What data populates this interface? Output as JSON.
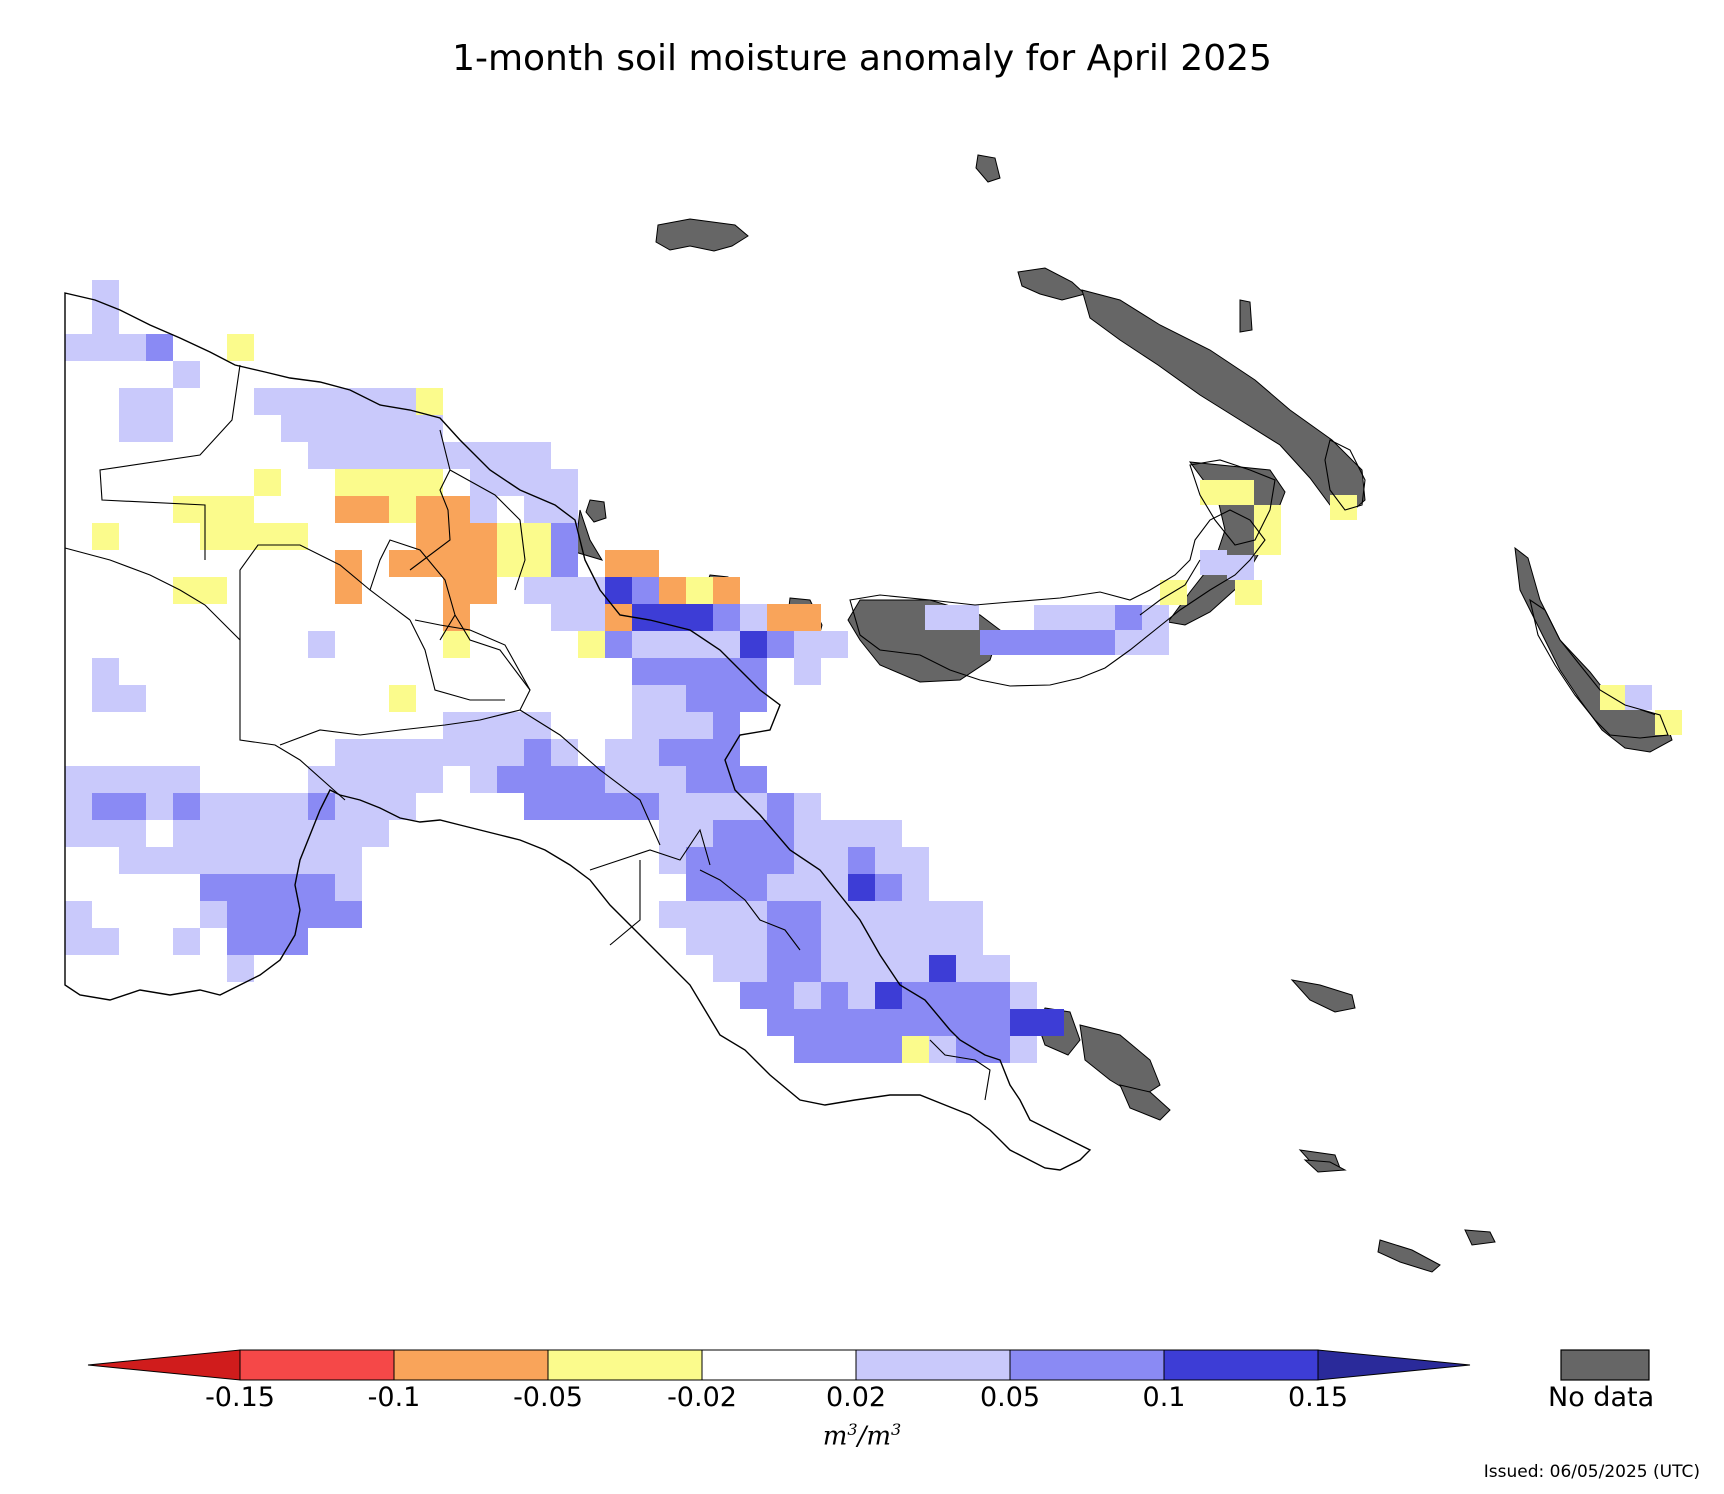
{
  "title": "1-month soil moisture anomaly for April 2025",
  "legend": {
    "ticks": [
      "-0.15",
      "-0.1",
      "-0.05",
      "-0.02",
      "0.02",
      "0.05",
      "0.1",
      "0.15"
    ],
    "colors": [
      "#d01c1c",
      "#f54848",
      "#f9a45a",
      "#fbfb8c",
      "#ffffff",
      "#c9c9fb",
      "#8a8af4",
      "#3d3dd6",
      "#2a2a9a"
    ],
    "units_base": "m",
    "units_exp": "3",
    "units_slash": "/",
    "nodata_label": "No data",
    "nodata_color": "#666666"
  },
  "issued": "Issued: 06/05/2025 (UTC)",
  "map_colors": {
    "outline": "#000000",
    "land": "#ffffff",
    "nodata": "#666666",
    "class_-3": "#f9a45a",
    "class_-2": "#fbfb8c",
    "class_2": "#c9c9fb",
    "class_3": "#8a8af4",
    "class_4": "#3d3dd6"
  }
}
